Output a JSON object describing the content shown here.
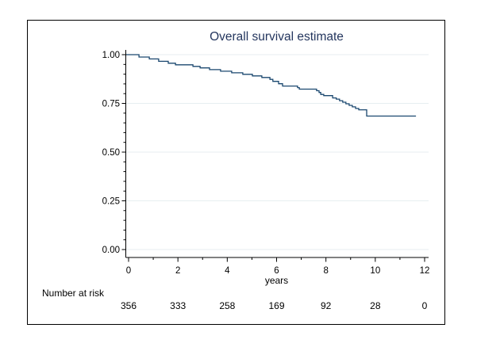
{
  "title": "Overall survival estimate",
  "colors": {
    "title": "#24365e",
    "line": "#1a476f",
    "grid": "#e7eef1",
    "axis": "#000000",
    "text": "#000000",
    "background": "#ffffff"
  },
  "axis": {
    "x": {
      "label": "years",
      "major_ticks": [
        0,
        2,
        4,
        6,
        8,
        10,
        12
      ],
      "minor_ticks": [
        1,
        3,
        5,
        7,
        9,
        11
      ],
      "range": [
        0,
        12
      ]
    },
    "y": {
      "tick_labels": [
        "1.00",
        "0.75",
        "0.50",
        "0.25",
        "0.00"
      ],
      "major_ticks": [
        1.0,
        0.75,
        0.5,
        0.25,
        0.0
      ],
      "minor_step": 0.05,
      "range": [
        0,
        1
      ]
    }
  },
  "risk_table": {
    "label": "Number at risk",
    "times": [
      0,
      2,
      4,
      6,
      8,
      10,
      12
    ],
    "counts": [
      "356",
      "333",
      "258",
      "169",
      "92",
      "28",
      "0"
    ]
  },
  "chart_data": {
    "type": "line",
    "subtype": "kaplan_meier_step",
    "title": "Overall survival estimate",
    "xlabel": "years",
    "ylabel": "",
    "xlim": [
      0,
      12
    ],
    "ylim": [
      0,
      1
    ],
    "grid": "horizontal-major-gridlines",
    "legend": "none",
    "series": [
      {
        "name": "Overall survival",
        "steps": [
          [
            0,
            1.0
          ],
          [
            0.42,
            0.988
          ],
          [
            0.84,
            0.978
          ],
          [
            1.22,
            0.966
          ],
          [
            1.61,
            0.956
          ],
          [
            1.9,
            0.948
          ],
          [
            2.61,
            0.94
          ],
          [
            2.9,
            0.932
          ],
          [
            3.28,
            0.923
          ],
          [
            3.73,
            0.915
          ],
          [
            4.18,
            0.907
          ],
          [
            4.63,
            0.899
          ],
          [
            5.02,
            0.891
          ],
          [
            5.4,
            0.883
          ],
          [
            5.73,
            0.873
          ],
          [
            5.85,
            0.863
          ],
          [
            6.08,
            0.851
          ],
          [
            6.24,
            0.839
          ],
          [
            6.85,
            0.831
          ],
          [
            6.92,
            0.823
          ],
          [
            7.62,
            0.815
          ],
          [
            7.72,
            0.806
          ],
          [
            7.79,
            0.796
          ],
          [
            7.91,
            0.79
          ],
          [
            8.27,
            0.778
          ],
          [
            8.42,
            0.772
          ],
          [
            8.55,
            0.764
          ],
          [
            8.68,
            0.756
          ],
          [
            8.81,
            0.748
          ],
          [
            8.94,
            0.74
          ],
          [
            9.07,
            0.732
          ],
          [
            9.2,
            0.724
          ],
          [
            9.33,
            0.717
          ],
          [
            9.65,
            0.685
          ]
        ],
        "end_time": 11.65,
        "final_value": 0.685
      }
    ],
    "number_at_risk": {
      "times": [
        0,
        2,
        4,
        6,
        8,
        10,
        12
      ],
      "counts": [
        356,
        333,
        258,
        169,
        92,
        28,
        0
      ]
    }
  }
}
